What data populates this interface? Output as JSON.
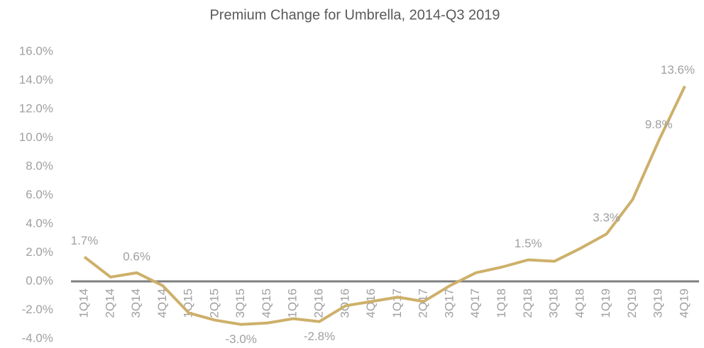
{
  "chart_data": {
    "type": "line",
    "title": "Premium Change for Umbrella, 2014-Q3 2019",
    "categories": [
      "1Q14",
      "2Q14",
      "3Q14",
      "4Q14",
      "1Q15",
      "2Q15",
      "3Q15",
      "4Q15",
      "1Q16",
      "2Q16",
      "3Q16",
      "4Q16",
      "1Q17",
      "2Q17",
      "3Q17",
      "4Q17",
      "1Q18",
      "2Q18",
      "3Q18",
      "4Q18",
      "1Q19",
      "2Q19",
      "3Q19",
      "4Q19"
    ],
    "values": [
      1.7,
      0.3,
      0.6,
      -0.3,
      -2.2,
      -2.7,
      -3.0,
      -2.9,
      -2.6,
      -2.8,
      -1.7,
      -1.4,
      -1.1,
      -1.4,
      -0.3,
      0.6,
      1.0,
      1.5,
      1.4,
      2.3,
      3.3,
      5.7,
      9.8,
      13.6
    ],
    "value_labels": [
      "1.7%",
      null,
      "0.6%",
      null,
      null,
      null,
      "-3.0%",
      null,
      null,
      "-2.8%",
      null,
      null,
      null,
      null,
      null,
      null,
      null,
      "1.5%",
      null,
      null,
      "3.3%",
      null,
      "9.8%",
      "13.6%"
    ],
    "color": "#cdb06a",
    "ylim": [
      -4,
      16
    ],
    "yticks": [
      {
        "value": -4,
        "label": "-4.0%"
      },
      {
        "value": -2,
        "label": "-2.0%"
      },
      {
        "value": 0,
        "label": "0.0%"
      },
      {
        "value": 2,
        "label": "2.0%"
      },
      {
        "value": 4,
        "label": "4.0%"
      },
      {
        "value": 6,
        "label": "6.0%"
      },
      {
        "value": 8,
        "label": "8.0%"
      },
      {
        "value": 10,
        "label": "10.0%"
      },
      {
        "value": 12,
        "label": "12.0%"
      },
      {
        "value": 14,
        "label": "14.0%"
      },
      {
        "value": 16,
        "label": "16.0%"
      }
    ]
  }
}
